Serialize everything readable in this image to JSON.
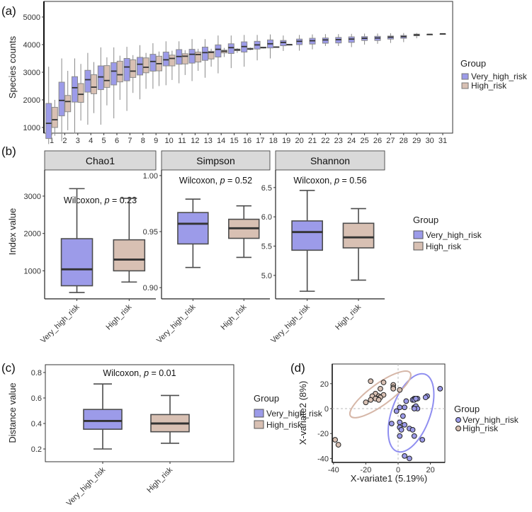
{
  "colors": {
    "very_high_risk": "#9c9be9",
    "high_risk": "#d8c0b3",
    "box_stroke": "#4d4d4d",
    "light_stroke": "#8a8a8a"
  },
  "legend": {
    "title": "Group",
    "items": [
      "Very_high_risk",
      "High_risk"
    ]
  },
  "panel_labels": [
    "(a)",
    "(b)",
    "(c)",
    "(d)"
  ],
  "chart_data": [
    {
      "id": "a",
      "type": "boxplot",
      "ylabel": "Species counts",
      "xlabel": "",
      "ylim": [
        300,
        5500
      ],
      "yticks": [
        1000,
        2000,
        3000,
        4000,
        5000
      ],
      "categories": [
        "1",
        "2",
        "3",
        "4",
        "5",
        "6",
        "7",
        "8",
        "9",
        "10",
        "11",
        "12",
        "13",
        "14",
        "15",
        "16",
        "17",
        "18",
        "19",
        "20",
        "21",
        "22",
        "23",
        "24",
        "25",
        "26",
        "27",
        "28",
        "29",
        "30",
        "31"
      ],
      "series": [
        {
          "name": "Very_high_risk",
          "boxes": [
            [
              400,
              600,
              1150,
              1870,
              3200
            ],
            [
              500,
              1420,
              1980,
              2640,
              3500
            ],
            [
              780,
              1920,
              2440,
              2840,
              3500
            ],
            [
              1100,
              2280,
              2730,
              3070,
              3700
            ],
            [
              1100,
              2370,
              2830,
              3230,
              3900
            ],
            [
              1330,
              2540,
              3040,
              3350,
              3900
            ],
            [
              1600,
              2690,
              3190,
              3500,
              3920
            ],
            [
              2020,
              2900,
              3290,
              3540,
              3980
            ],
            [
              2400,
              3040,
              3390,
              3650,
              4050
            ],
            [
              2530,
              3230,
              3450,
              3730,
              4120
            ],
            [
              2600,
              3290,
              3570,
              3820,
              4120
            ],
            [
              2680,
              3330,
              3650,
              3830,
              4200
            ],
            [
              2800,
              3430,
              3710,
              3910,
              4200
            ],
            [
              2960,
              3550,
              3830,
              3990,
              4330
            ],
            [
              3150,
              3680,
              3890,
              4030,
              4330
            ],
            [
              3200,
              3730,
              3930,
              4100,
              4350
            ],
            [
              3430,
              3840,
              3990,
              4120,
              4350
            ],
            [
              3500,
              3880,
              4030,
              4170,
              4370
            ],
            [
              3770,
              3960,
              4080,
              4150,
              4330
            ],
            [
              3780,
              4000,
              4120,
              4200,
              4350
            ],
            [
              3830,
              4020,
              4140,
              4230,
              4370
            ],
            [
              3950,
              4050,
              4170,
              4240,
              4380
            ],
            [
              3950,
              4060,
              4180,
              4260,
              4380
            ],
            [
              3910,
              4080,
              4200,
              4280,
              4390
            ],
            [
              4000,
              4150,
              4230,
              4290,
              4400
            ],
            [
              4030,
              4150,
              4240,
              4300,
              4400
            ],
            [
              4060,
              4200,
              4270,
              4310,
              4410
            ],
            [
              4090,
              4230,
              4290,
              4330,
              4420
            ],
            [
              4230,
              4320,
              4350,
              4380,
              4420
            ],
            [
              4370,
              4370,
              4370,
              4370,
              4370
            ],
            [
              4390,
              4390,
              4390,
              4390,
              4390
            ]
          ]
        },
        {
          "name": "High_risk",
          "boxes": [
            [
              700,
              1000,
              1280,
              1730,
              2000
            ],
            [
              900,
              1570,
              1940,
              2160,
              3050
            ],
            [
              1250,
              1910,
              2200,
              2590,
              3300
            ],
            [
              1520,
              2220,
              2460,
              2910,
              3370
            ],
            [
              1800,
              2450,
              2700,
              3240,
              3540
            ],
            [
              2000,
              2650,
              2910,
              3400,
              3600
            ],
            [
              2250,
              2810,
              3040,
              3450,
              3620
            ],
            [
              2400,
              2980,
              3180,
              3520,
              3700
            ],
            [
              2500,
              3050,
              3310,
              3580,
              3750
            ],
            [
              2720,
              3230,
              3500,
              3620,
              3780
            ],
            [
              2900,
              3300,
              3580,
              3670,
              3800
            ],
            [
              3050,
              3370,
              3640,
              3730,
              3850
            ],
            [
              3200,
              3480,
              3720,
              3760,
              3850
            ],
            [
              3550,
              3700,
              3760,
              3800,
              3880
            ],
            [
              3700,
              3780,
              3810,
              3840,
              3870
            ],
            [
              3800,
              3830,
              3840,
              3870,
              3900
            ],
            [
              3860,
              3880,
              3890,
              3910,
              3920
            ],
            [
              3900,
              3910,
              3910,
              3920,
              3930
            ],
            [
              3990,
              4000,
              4000,
              4000,
              4010
            ],
            null,
            null,
            null,
            null,
            null,
            null,
            null,
            null,
            null,
            null,
            null,
            null
          ]
        }
      ]
    },
    {
      "id": "b",
      "type": "boxplot",
      "ylabel": "Index value",
      "facets": [
        {
          "title": "Chao1",
          "test": {
            "prefix": "Wilcoxon, ",
            "p": "p",
            "value": " = 0.23"
          },
          "ylim": [
            250,
            3700
          ],
          "yticks": [
            1000,
            2000,
            3000
          ],
          "tick_labels": [
            "1000",
            "2000",
            "3000"
          ],
          "categories": [
            "Very_high_risk",
            "High_risk"
          ],
          "boxes": [
            [
              420,
              600,
              1040,
              1860,
              3200
            ],
            [
              700,
              1000,
              1300,
              1830,
              2940
            ]
          ]
        },
        {
          "title": "Simpson",
          "test": {
            "prefix": "Wilcoxon, ",
            "p": "p",
            "value": " = 0.52"
          },
          "ylim": [
            0.89,
            1.005
          ],
          "yticks": [
            0.9,
            0.95,
            1.0
          ],
          "tick_labels": [
            "0.90",
            "0.95",
            "1.00"
          ],
          "categories": [
            "Very_high_risk",
            "High_risk"
          ],
          "boxes": [
            [
              0.918,
              0.939,
              0.957,
              0.967,
              0.979
            ],
            [
              0.927,
              0.944,
              0.953,
              0.961,
              0.973
            ]
          ]
        },
        {
          "title": "Shannon",
          "test": {
            "prefix": "Wilcoxon, ",
            "p": "p",
            "value": " = 0.56"
          },
          "ylim": [
            4.6,
            6.8
          ],
          "yticks": [
            5.0,
            5.5,
            6.0,
            6.5
          ],
          "tick_labels": [
            "5.0",
            "5.5",
            "6.0",
            "6.5"
          ],
          "categories": [
            "Very_high_risk",
            "High_risk"
          ],
          "boxes": [
            [
              4.73,
              5.43,
              5.74,
              5.93,
              6.45
            ],
            [
              4.92,
              5.47,
              5.65,
              5.89,
              6.14
            ]
          ]
        }
      ]
    },
    {
      "id": "c",
      "type": "boxplot",
      "ylabel": "Distance value",
      "test": {
        "prefix": "Wilcoxon, ",
        "p": "p",
        "value": " = 0.01"
      },
      "ylim": [
        0.16,
        0.86
      ],
      "yticks": [
        0.2,
        0.4,
        0.6,
        0.8
      ],
      "tick_labels": [
        "0.2",
        "0.4",
        "0.6",
        "0.8"
      ],
      "categories": [
        "Very_high_risk",
        "High_risk"
      ],
      "boxes": [
        [
          0.2,
          0.355,
          0.42,
          0.51,
          0.71
        ],
        [
          0.245,
          0.335,
          0.4,
          0.47,
          0.62
        ]
      ]
    },
    {
      "id": "d",
      "type": "scatter",
      "xlabel": "X-variate1 (5.19%)",
      "ylabel": "X-variate2 (8%)",
      "xlim": [
        -42,
        29
      ],
      "ylim": [
        -43,
        36
      ],
      "xticks": [
        -40,
        -20,
        0,
        20
      ],
      "yticks": [
        -40,
        -20,
        0,
        20
      ],
      "series": [
        {
          "name": "Very_high_risk",
          "ellipse_center": [
            8,
            -3.4
          ],
          "points": [
            [
              26,
              16
            ],
            [
              18,
              10
            ],
            [
              17,
              9
            ],
            [
              12,
              8
            ],
            [
              10,
              8
            ],
            [
              9,
              7
            ],
            [
              10,
              7
            ],
            [
              5,
              6
            ],
            [
              11,
              8
            ],
            [
              1,
              1
            ],
            [
              4,
              1
            ],
            [
              -1,
              -2
            ],
            [
              3,
              -6
            ],
            [
              10,
              1
            ],
            [
              11,
              2
            ],
            [
              12,
              0
            ],
            [
              10,
              0
            ],
            [
              -4,
              -12
            ],
            [
              1,
              -11
            ],
            [
              4,
              -13
            ],
            [
              1,
              -15
            ],
            [
              2,
              -17
            ],
            [
              7,
              -16
            ],
            [
              9,
              -17
            ],
            [
              1,
              -22
            ],
            [
              10,
              -22
            ],
            [
              15,
              -25
            ],
            [
              4,
              -38
            ],
            [
              7,
              -40
            ]
          ]
        },
        {
          "name": "High_risk",
          "ellipse_center": [
            -11,
            11.4
          ],
          "points": [
            [
              -17,
              22
            ],
            [
              -9,
              21
            ],
            [
              -11,
              16
            ],
            [
              -3,
              19
            ],
            [
              -3,
              17
            ],
            [
              -3,
              16
            ],
            [
              1,
              15
            ],
            [
              -14,
              12
            ],
            [
              -12,
              10
            ],
            [
              -16,
              10
            ],
            [
              -9,
              11
            ],
            [
              -11,
              9
            ],
            [
              -13,
              8
            ],
            [
              -14,
              8
            ],
            [
              -17,
              7
            ],
            [
              -20,
              5
            ],
            [
              -12,
              7
            ],
            [
              -39,
              -25
            ],
            [
              -37,
              -29
            ]
          ]
        }
      ]
    }
  ]
}
